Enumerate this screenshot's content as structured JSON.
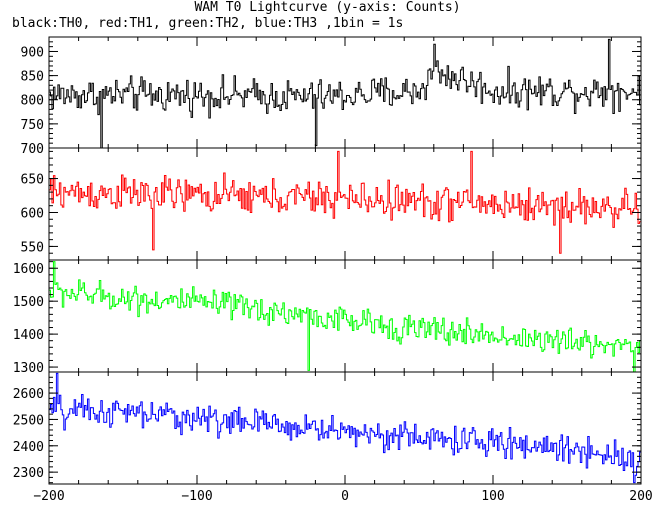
{
  "chart_data": {
    "type": "line",
    "title": "WAM T0 Lightcurve (y-axis: Counts)",
    "subtitle": "black:TH0, red:TH1, green:TH2, blue:TH3 ,1bin = 1s",
    "xlim": [
      -200,
      200
    ],
    "x_ticks": [
      -200,
      -100,
      0,
      100,
      200
    ],
    "bin_seconds": 1,
    "grid": false,
    "panels": [
      {
        "series_label": "TH0",
        "color": "#000000",
        "ylim": [
          700,
          930
        ],
        "y_ticks": [
          700,
          750,
          800,
          850,
          900
        ],
        "trend": [
          [
            -200,
            810
          ],
          [
            -100,
            810
          ],
          [
            -20,
            805
          ],
          [
            50,
            818
          ],
          [
            60,
            860
          ],
          [
            80,
            840
          ],
          [
            100,
            818
          ],
          [
            200,
            818
          ]
        ],
        "noise_amplitude": 35,
        "spikes": [
          [
            60,
            915
          ],
          [
            178,
            925
          ],
          [
            -165,
            700
          ],
          [
            -20,
            705
          ]
        ]
      },
      {
        "series_label": "TH1",
        "color": "#ff0000",
        "ylim": [
          530,
          695
        ],
        "y_ticks": [
          550,
          600,
          650
        ],
        "trend": [
          [
            -200,
            630
          ],
          [
            -100,
            625
          ],
          [
            0,
            620
          ],
          [
            100,
            612
          ],
          [
            200,
            605
          ]
        ],
        "noise_amplitude": 26,
        "spikes": [
          [
            -5,
            690
          ],
          [
            85,
            690
          ],
          [
            -130,
            545
          ],
          [
            145,
            540
          ]
        ]
      },
      {
        "series_label": "TH2",
        "color": "#00ff00",
        "ylim": [
          1285,
          1625
        ],
        "y_ticks": [
          1300,
          1400,
          1500,
          1600
        ],
        "trend": [
          [
            -200,
            1530
          ],
          [
            -150,
            1510
          ],
          [
            -100,
            1495
          ],
          [
            -50,
            1470
          ],
          [
            0,
            1440
          ],
          [
            50,
            1415
          ],
          [
            100,
            1395
          ],
          [
            150,
            1375
          ],
          [
            200,
            1365
          ]
        ],
        "noise_amplitude": 42,
        "spikes": [
          [
            -197,
            1620
          ],
          [
            -25,
            1290
          ],
          [
            195,
            1280
          ]
        ]
      },
      {
        "series_label": "TH3",
        "color": "#0000ff",
        "ylim": [
          2255,
          2680
        ],
        "y_ticks": [
          2300,
          2400,
          2500,
          2600
        ],
        "trend": [
          [
            -200,
            2535
          ],
          [
            -150,
            2525
          ],
          [
            -100,
            2505
          ],
          [
            -50,
            2480
          ],
          [
            0,
            2455
          ],
          [
            50,
            2430
          ],
          [
            100,
            2410
          ],
          [
            150,
            2390
          ],
          [
            200,
            2350
          ]
        ],
        "noise_amplitude": 55,
        "spikes": [
          [
            -195,
            2675
          ],
          [
            -190,
            2460
          ],
          [
            195,
            2260
          ]
        ]
      }
    ]
  }
}
